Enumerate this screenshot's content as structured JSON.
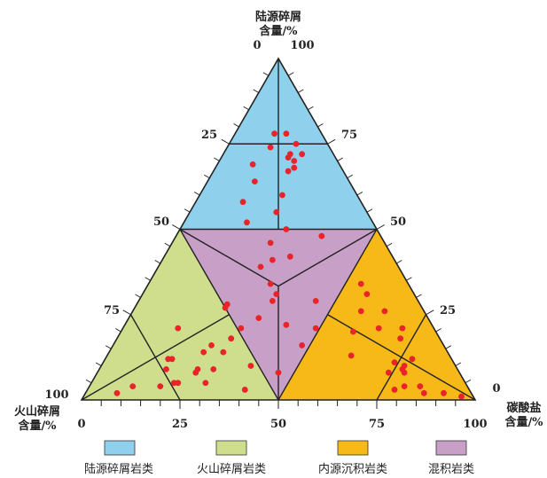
{
  "chart_data": {
    "type": "scatter",
    "subtype": "ternary",
    "axes": [
      {
        "id": "terrigenous",
        "title_line1": "陆源碎屑",
        "title_line2": "含量/%",
        "ticks": [
          "0",
          "100"
        ]
      },
      {
        "id": "volcaniclastic",
        "title_line1": "火山碎屑",
        "title_line2": "含量/%",
        "ticks": [
          "100"
        ]
      },
      {
        "id": "carbonate",
        "title_line1": "碳酸盐",
        "title_line2": "含量/%",
        "ticks": [
          "0",
          "100"
        ]
      }
    ],
    "edge_labels": {
      "left_25": "25",
      "left_50": "50",
      "left_75": "75",
      "right_75": "75",
      "right_50": "50",
      "right_25": "25",
      "bottom_0": "0",
      "bottom_25": "25",
      "bottom_50": "50",
      "bottom_75": "75"
    },
    "regions": [
      {
        "name": "陆源碎屑岩类",
        "color": "#8fd1ec"
      },
      {
        "name": "火山碎屑岩类",
        "color": "#cfde8c"
      },
      {
        "name": "内源沉积岩类",
        "color": "#f7b918"
      },
      {
        "name": "混积岩类",
        "color": "#c79fc7"
      }
    ],
    "point_color": "#e8242a",
    "points_composition_note": "each point: [terrigenous %, volcaniclastic %, carbonate %]",
    "points": [
      [
        78,
        9,
        13
      ],
      [
        75,
        8,
        17
      ],
      [
        78,
        12,
        10
      ],
      [
        74,
        15,
        11
      ],
      [
        72,
        11,
        17
      ],
      [
        72,
        8,
        20
      ],
      [
        70,
        11,
        19
      ],
      [
        67,
        14,
        19
      ],
      [
        68,
        12,
        20
      ],
      [
        71,
        12,
        17
      ],
      [
        69,
        22,
        9
      ],
      [
        64,
        24,
        12
      ],
      [
        58,
        30,
        12
      ],
      [
        52,
        32,
        16
      ],
      [
        60,
        19,
        21
      ],
      [
        55,
        23,
        22
      ],
      [
        50,
        23,
        27
      ],
      [
        48,
        15,
        37
      ],
      [
        46,
        29,
        25
      ],
      [
        42,
        26,
        32
      ],
      [
        41,
        31,
        28
      ],
      [
        39,
        35,
        26
      ],
      [
        34,
        35,
        31
      ],
      [
        31,
        35,
        34
      ],
      [
        29,
        37,
        34
      ],
      [
        29,
        26,
        45
      ],
      [
        24,
        43,
        33
      ],
      [
        22,
        37,
        41
      ],
      [
        21,
        30,
        49
      ],
      [
        20,
        21,
        59
      ],
      [
        16,
        36,
        48
      ],
      [
        8,
        46,
        46
      ],
      [
        28,
        49,
        23
      ],
      [
        27,
        50,
        23
      ],
      [
        21,
        65,
        14
      ],
      [
        21,
        49,
        30
      ],
      [
        18,
        53,
        29
      ],
      [
        16,
        59,
        25
      ],
      [
        14,
        62,
        24
      ],
      [
        14,
        57,
        29
      ],
      [
        10,
        52,
        38
      ],
      [
        9,
        74,
        17
      ],
      [
        12,
        71,
        17
      ],
      [
        12,
        72,
        16
      ],
      [
        9,
        66,
        25
      ],
      [
        9,
        62,
        29
      ],
      [
        8,
        67,
        25
      ],
      [
        4,
        78,
        18
      ],
      [
        5,
        74,
        21
      ],
      [
        5,
        73,
        22
      ],
      [
        5,
        66,
        29
      ],
      [
        3,
        57,
        40
      ],
      [
        2,
        90,
        8
      ],
      [
        4,
        85,
        11
      ],
      [
        34,
        12,
        54
      ],
      [
        31,
        12,
        57
      ],
      [
        26,
        16,
        58
      ],
      [
        26,
        10,
        64
      ],
      [
        21,
        8,
        71
      ],
      [
        21,
        14,
        65
      ],
      [
        18,
        10,
        72
      ],
      [
        13,
        25,
        62
      ],
      [
        11,
        15,
        74
      ],
      [
        12,
        10,
        78
      ],
      [
        10,
        13,
        77
      ],
      [
        9,
        14,
        77
      ],
      [
        8,
        18,
        74
      ],
      [
        8,
        14,
        78
      ],
      [
        4,
        16,
        80
      ],
      [
        4,
        12,
        84
      ],
      [
        3,
        19,
        78
      ],
      [
        2,
        12,
        86
      ],
      [
        2,
        7,
        91
      ],
      [
        1,
        3,
        96
      ]
    ]
  }
}
